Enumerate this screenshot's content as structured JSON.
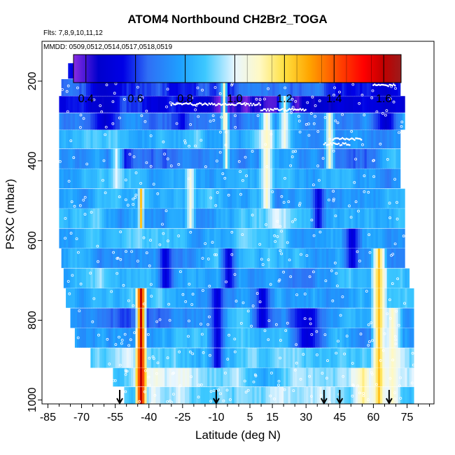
{
  "title": "ATOM4 Northbound CH2Br2_TOGA",
  "flights_label": "Flts: 7,8,9,10,11,12",
  "dates_label": "MMDD: 0509,0512,0514,0517,0518,0519",
  "chart_data": {
    "type": "heatmap",
    "title": "ATOM4 Northbound CH2Br2_TOGA",
    "xlabel": "Latitude (deg N)",
    "ylabel": "PSXC (mbar)",
    "xlim": [
      -87,
      87
    ],
    "ylim": [
      1010,
      100
    ],
    "x_ticks": [
      -85,
      -70,
      -55,
      -40,
      -25,
      -10,
      5,
      15,
      30,
      45,
      60,
      75
    ],
    "x_minor_ticks": [
      -80,
      -75,
      -65,
      -60,
      -50,
      -45,
      -35,
      -30,
      -20,
      -15,
      -5,
      0,
      10,
      20,
      25,
      35,
      40,
      50,
      55,
      65,
      70,
      80,
      85
    ],
    "y_ticks": [
      200,
      400,
      600,
      800,
      1000
    ],
    "colorbar": {
      "range": [
        0.35,
        1.67
      ],
      "ticks": [
        "0.4",
        "0.6",
        "0.8",
        "1.0",
        "1.2",
        "1.4",
        "1.6"
      ],
      "tick_values": [
        0.4,
        0.6,
        0.8,
        1.0,
        1.2,
        1.4,
        1.6
      ],
      "stops": [
        {
          "v": 0.35,
          "c": "#8a2be2"
        },
        {
          "v": 0.45,
          "c": "#0000cd"
        },
        {
          "v": 0.55,
          "c": "#0000e6"
        },
        {
          "v": 0.65,
          "c": "#2f6ff5"
        },
        {
          "v": 0.78,
          "c": "#1ea0ff"
        },
        {
          "v": 0.88,
          "c": "#3cc8ff"
        },
        {
          "v": 1.0,
          "c": "#e8f6ff"
        },
        {
          "v": 1.1,
          "c": "#fff9c4"
        },
        {
          "v": 1.2,
          "c": "#ffe040"
        },
        {
          "v": 1.3,
          "c": "#ffa500"
        },
        {
          "v": 1.42,
          "c": "#ff4500"
        },
        {
          "v": 1.52,
          "c": "#ff0000"
        },
        {
          "v": 1.6,
          "c": "#c00000"
        },
        {
          "v": 1.67,
          "c": "#9b1b1b"
        }
      ]
    },
    "layers": [
      {
        "p": 175,
        "lat_min": -76,
        "lat_max": 70,
        "base": 0.55
      },
      {
        "p": 215,
        "lat_min": -79,
        "lat_max": 72,
        "base": 0.6
      },
      {
        "p": 260,
        "lat_min": -80,
        "lat_max": 74,
        "base": 0.5
      },
      {
        "p": 300,
        "lat_min": -80,
        "lat_max": 74,
        "base": 0.7
      },
      {
        "p": 345,
        "lat_min": -80,
        "lat_max": 72,
        "base": 0.8
      },
      {
        "p": 395,
        "lat_min": -80,
        "lat_max": 72,
        "base": 0.75
      },
      {
        "p": 445,
        "lat_min": -80,
        "lat_max": 72,
        "base": 0.8
      },
      {
        "p": 495,
        "lat_min": -80,
        "lat_max": 74,
        "base": 0.8
      },
      {
        "p": 545,
        "lat_min": -80,
        "lat_max": 74,
        "base": 0.85
      },
      {
        "p": 595,
        "lat_min": -80,
        "lat_max": 74,
        "base": 0.8
      },
      {
        "p": 645,
        "lat_min": -79,
        "lat_max": 74,
        "base": 0.8
      },
      {
        "p": 695,
        "lat_min": -78,
        "lat_max": 76,
        "base": 0.8
      },
      {
        "p": 745,
        "lat_min": -77,
        "lat_max": 78,
        "base": 0.8
      },
      {
        "p": 795,
        "lat_min": -75,
        "lat_max": 78,
        "base": 0.75
      },
      {
        "p": 845,
        "lat_min": -73,
        "lat_max": 78,
        "base": 0.8
      },
      {
        "p": 895,
        "lat_min": -66,
        "lat_max": 78,
        "base": 0.85
      },
      {
        "p": 945,
        "lat_min": -56,
        "lat_max": 78,
        "base": 0.9
      },
      {
        "p": 990,
        "lat_min": -51,
        "lat_max": 78,
        "base": 0.9
      }
    ],
    "features": [
      {
        "lat": -44,
        "p_min": 740,
        "p_max": 1010,
        "v": 1.6,
        "w": 3
      },
      {
        "lat": -44,
        "p_min": 470,
        "p_max": 580,
        "v": 1.25,
        "w": 1.5
      },
      {
        "lat": -22,
        "p_min": 440,
        "p_max": 560,
        "v": 1.05,
        "w": 3
      },
      {
        "lat": -7,
        "p_min": 200,
        "p_max": 300,
        "v": 1.1,
        "w": 2
      },
      {
        "lat": -6,
        "p_min": 300,
        "p_max": 420,
        "v": 1.05,
        "w": 2
      },
      {
        "lat": 12,
        "p_min": 300,
        "p_max": 520,
        "v": 1.1,
        "w": 4
      },
      {
        "lat": 20,
        "p_min": 260,
        "p_max": 380,
        "v": 1.05,
        "w": 4
      },
      {
        "lat": 40,
        "p_min": 300,
        "p_max": 400,
        "v": 1.1,
        "w": 3
      },
      {
        "lat": 62,
        "p_min": 600,
        "p_max": 1010,
        "v": 1.25,
        "w": 4
      },
      {
        "lat": 55,
        "p_min": 900,
        "p_max": 1010,
        "v": 1.15,
        "w": 6
      },
      {
        "lat": 68,
        "p_min": 750,
        "p_max": 1000,
        "v": 1.1,
        "w": 5
      },
      {
        "lat": 30,
        "p_min": 760,
        "p_max": 860,
        "v": 0.5,
        "w": 10
      },
      {
        "lat": 10,
        "p_min": 700,
        "p_max": 800,
        "v": 0.5,
        "w": 6
      },
      {
        "lat": -33,
        "p_min": 600,
        "p_max": 700,
        "v": 0.5,
        "w": 5
      },
      {
        "lat": -5,
        "p_min": 600,
        "p_max": 700,
        "v": 0.5,
        "w": 5
      },
      {
        "lat": 50,
        "p_min": 560,
        "p_max": 660,
        "v": 0.5,
        "w": 5
      },
      {
        "lat": 35,
        "p_min": 450,
        "p_max": 560,
        "v": 0.5,
        "w": 4
      },
      {
        "lat": -60,
        "p_min": 200,
        "p_max": 320,
        "v": 0.45,
        "w": 8
      },
      {
        "lat": 65,
        "p_min": 200,
        "p_max": 320,
        "v": 0.45,
        "w": 8
      },
      {
        "lat": -10,
        "p_min": 700,
        "p_max": 900,
        "v": 0.5,
        "w": 5
      },
      {
        "lat": -55,
        "p_min": 360,
        "p_max": 460,
        "v": 1.0,
        "w": 4
      }
    ],
    "arrows_lat": [
      -53,
      -10,
      38,
      45,
      67
    ]
  }
}
